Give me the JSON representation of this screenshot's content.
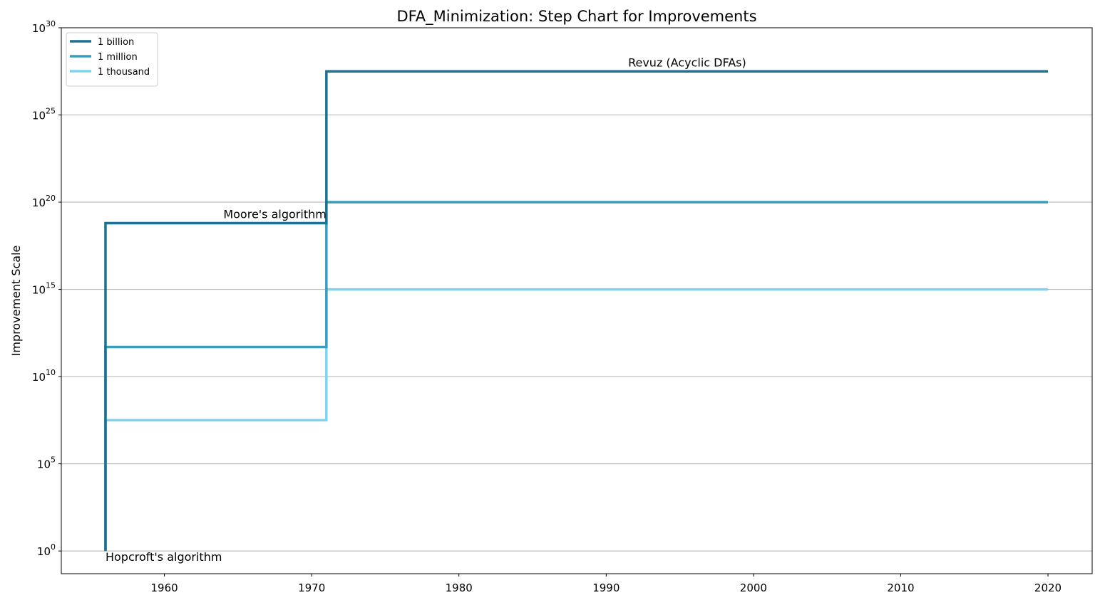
{
  "chart_data": {
    "type": "line",
    "step": "post",
    "title": "DFA_Minimization: Step Chart for Improvements",
    "xlabel": "",
    "ylabel": "Improvement Scale",
    "y_scale": "log",
    "xlim": [
      1953,
      2023
    ],
    "ylim_exponents": [
      -1.3,
      30
    ],
    "x_ticks": [
      1960,
      1970,
      1980,
      1990,
      2000,
      2010,
      2020
    ],
    "y_ticks": [
      {
        "base": "10",
        "exp": "0"
      },
      {
        "base": "10",
        "exp": "5"
      },
      {
        "base": "10",
        "exp": "10"
      },
      {
        "base": "10",
        "exp": "15"
      },
      {
        "base": "10",
        "exp": "20"
      },
      {
        "base": "10",
        "exp": "25"
      },
      {
        "base": "10",
        "exp": "30"
      }
    ],
    "grid": "horizontal",
    "legend_position": "top-left",
    "series": [
      {
        "name": "1 billion",
        "color": "#1a7290",
        "points": [
          {
            "x": 1956,
            "log10_y": 0
          },
          {
            "x": 1956,
            "log10_y": 18.8
          },
          {
            "x": 1971,
            "log10_y": 18.8
          },
          {
            "x": 1971,
            "log10_y": 27.5
          },
          {
            "x": 2020,
            "log10_y": 27.5
          }
        ]
      },
      {
        "name": "1 million",
        "color": "#3b9dbb",
        "points": [
          {
            "x": 1956,
            "log10_y": 0
          },
          {
            "x": 1956,
            "log10_y": 11.7
          },
          {
            "x": 1971,
            "log10_y": 11.7
          },
          {
            "x": 1971,
            "log10_y": 20
          },
          {
            "x": 2020,
            "log10_y": 20
          }
        ]
      },
      {
        "name": "1 thousand",
        "color": "#7dd3f0",
        "points": [
          {
            "x": 1956,
            "log10_y": 0
          },
          {
            "x": 1956,
            "log10_y": 7.5
          },
          {
            "x": 1971,
            "log10_y": 7.5
          },
          {
            "x": 1971,
            "log10_y": 15
          },
          {
            "x": 2020,
            "log10_y": 15
          }
        ]
      }
    ],
    "annotations": [
      {
        "text": "Hopcroft's algorithm",
        "x": 1956,
        "log10_y": 0,
        "anchor": "start",
        "baseline": "below"
      },
      {
        "text": "Moore's algorithm",
        "x": 1971,
        "log10_y": 18.8,
        "anchor": "end",
        "baseline": "above"
      },
      {
        "text": "Revuz (Acyclic DFAs)",
        "x": 1995.5,
        "log10_y": 27.5,
        "anchor": "middle",
        "baseline": "above"
      }
    ]
  }
}
